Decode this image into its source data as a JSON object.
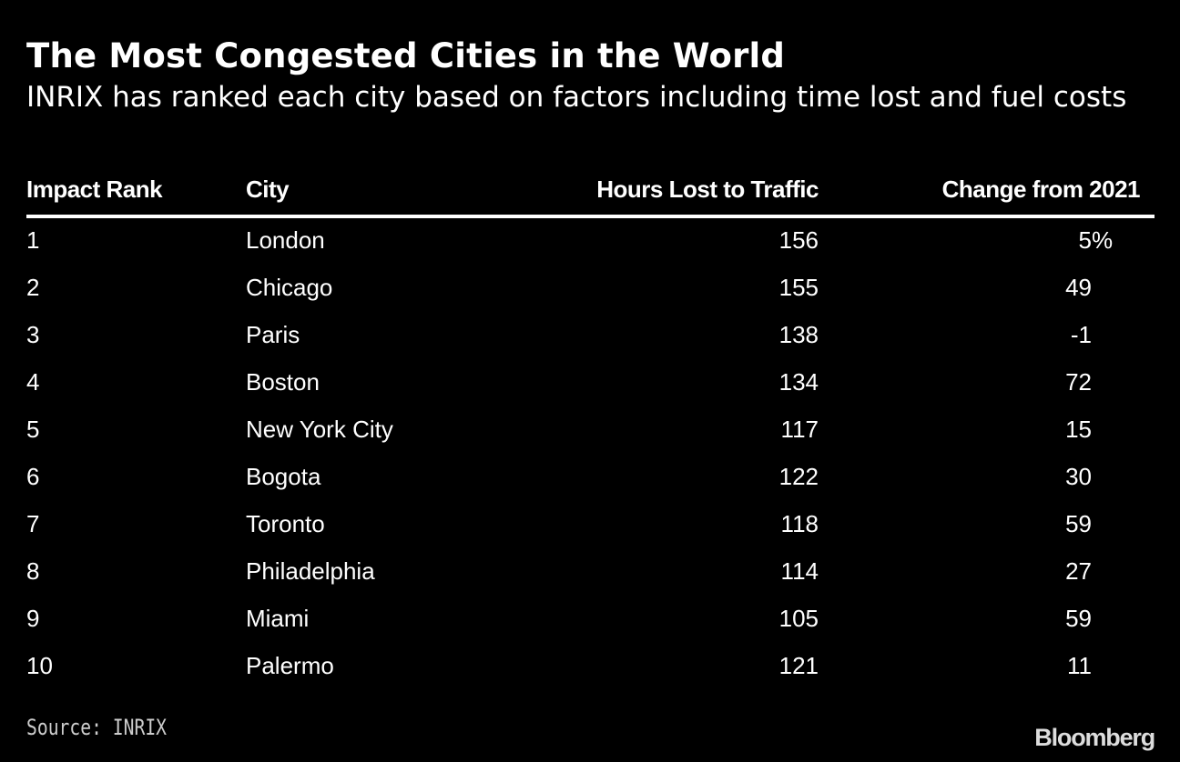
{
  "chart_data": {
    "type": "table",
    "title": "The Most Congested Cities in the World",
    "subtitle": "INRIX has ranked each city based on factors including time lost and fuel costs",
    "columns": [
      "Impact Rank",
      "City",
      "Hours Lost to Traffic",
      "Change from 2021"
    ],
    "rows": [
      {
        "rank": "1",
        "city": "London",
        "hours": "156",
        "change": "5",
        "unit": "%"
      },
      {
        "rank": "2",
        "city": "Chicago",
        "hours": "155",
        "change": "49"
      },
      {
        "rank": "3",
        "city": "Paris",
        "hours": "138",
        "change": "-1"
      },
      {
        "rank": "4",
        "city": "Boston",
        "hours": "134",
        "change": "72"
      },
      {
        "rank": "5",
        "city": "New York City",
        "hours": "117",
        "change": "15"
      },
      {
        "rank": "6",
        "city": "Bogota",
        "hours": "122",
        "change": "30"
      },
      {
        "rank": "7",
        "city": "Toronto",
        "hours": "118",
        "change": "59"
      },
      {
        "rank": "8",
        "city": "Philadelphia",
        "hours": "114",
        "change": "27"
      },
      {
        "rank": "9",
        "city": "Miami",
        "hours": "105",
        "change": "59"
      },
      {
        "rank": "10",
        "city": "Palermo",
        "hours": "121",
        "change": "11"
      }
    ],
    "source": "Source: INRIX",
    "logo": "Bloomberg"
  },
  "colors": {
    "background": "#000000",
    "text": "#ffffff",
    "muted": "#cccccc"
  }
}
